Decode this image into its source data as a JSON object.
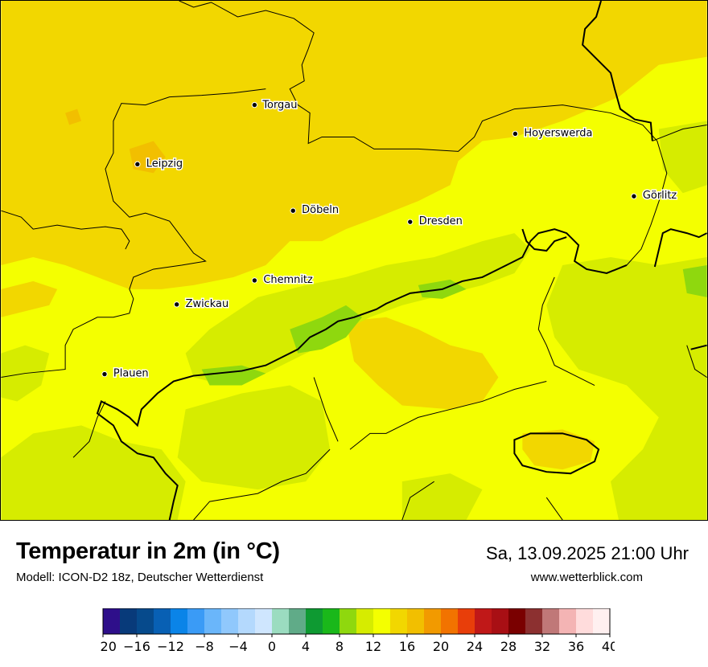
{
  "map": {
    "cities": [
      {
        "name": "Torgau"
      },
      {
        "name": "Hoyerswerda"
      },
      {
        "name": "Leipzig"
      },
      {
        "name": "Görlitz"
      },
      {
        "name": "Döbeln"
      },
      {
        "name": "Dresden"
      },
      {
        "name": "Chemnitz"
      },
      {
        "name": "Zwickau"
      },
      {
        "name": "Plauen"
      }
    ]
  },
  "footer": {
    "title": "Temperatur in 2m (in °C)",
    "subtitle": "Modell: ICON-D2 18z, Deutscher Wetterdienst",
    "datetime": "Sa, 13.09.2025 21:00 Uhr",
    "website": "www.wetterblick.com"
  },
  "legend": {
    "unit": "°C",
    "min": -20,
    "max": 40,
    "step": 2,
    "tick_labels": [
      "−20",
      "−16",
      "−12",
      "−8",
      "−4",
      "0",
      "4",
      "8",
      "12",
      "16",
      "20",
      "24",
      "28",
      "32",
      "36",
      "40"
    ],
    "colors": [
      "#2e0f8a",
      "#083a7a",
      "#064a8c",
      "#0860b4",
      "#0a84e8",
      "#3a9bf6",
      "#6ab6fa",
      "#90c8fc",
      "#b4d9fd",
      "#cfe6fe",
      "#9bdcc0",
      "#60ab88",
      "#0e9a32",
      "#1ab81a",
      "#8fd80e",
      "#d6ec00",
      "#f4ff00",
      "#f2d700",
      "#f2bf00",
      "#f29a00",
      "#f27300",
      "#e83e0a",
      "#c01818",
      "#a80f14",
      "#7a0000",
      "#8c3030",
      "#c07878",
      "#f4b4b4",
      "#ffdcdc",
      "#fff0f0"
    ]
  }
}
